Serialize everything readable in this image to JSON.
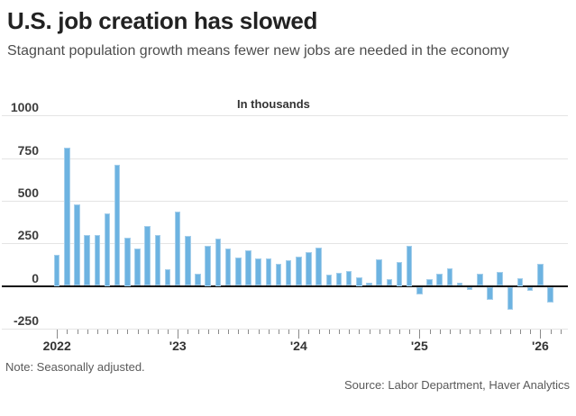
{
  "header": {
    "title": "U.S. job creation has slowed",
    "subtitle": "Stagnant population growth means fewer new jobs are needed in the economy"
  },
  "chart_data": {
    "type": "bar",
    "title": "U.S. job creation has slowed",
    "unit_label": "In thousands",
    "ylabel": "",
    "xlabel": "",
    "bar_color": "#6db3e1",
    "bar_border_color": "#a5cfeb",
    "grid_color": "#e4e4e4",
    "zero_line_color": "#111111",
    "yticks": [
      1000,
      750,
      500,
      250,
      0,
      -250
    ],
    "ylim": [
      -350,
      1050
    ],
    "x": [
      "Jan 2022",
      "Feb 2022",
      "Mar 2022",
      "Apr 2022",
      "May 2022",
      "Jun 2022",
      "Jul 2022",
      "Aug 2022",
      "Sep 2022",
      "Oct 2022",
      "Nov 2022",
      "Dec 2022",
      "Jan 2023",
      "Feb 2023",
      "Mar 2023",
      "Apr 2023",
      "May 2023",
      "Jun 2023",
      "Jul 2023",
      "Aug 2023",
      "Sep 2023",
      "Oct 2023",
      "Nov 2023",
      "Dec 2023",
      "Jan 2024",
      "Feb 2024",
      "Mar 2024",
      "Apr 2024",
      "May 2024",
      "Jun 2024",
      "Jul 2024",
      "Aug 2024",
      "Sep 2024",
      "Oct 2024",
      "Nov 2024",
      "Dec 2024",
      "Jan 2025",
      "Feb 2025",
      "Mar 2025",
      "Apr 2025",
      "May 2025",
      "Jun 2025",
      "Jul 2025",
      "Aug 2025",
      "Sep 2025",
      "Oct 2025",
      "Nov 2025",
      "Dec 2025",
      "Jan 2026",
      "Feb 2026"
    ],
    "values": [
      185,
      810,
      480,
      300,
      300,
      425,
      710,
      285,
      220,
      350,
      300,
      100,
      435,
      295,
      70,
      235,
      280,
      220,
      165,
      210,
      160,
      160,
      130,
      150,
      170,
      200,
      225,
      65,
      75,
      85,
      50,
      20,
      155,
      40,
      140,
      235,
      -45,
      40,
      70,
      105,
      20,
      -20,
      70,
      -75,
      80,
      -135,
      45,
      -25,
      130,
      -90
    ],
    "xticks_years": [
      {
        "label": "2022",
        "month_index": 0
      },
      {
        "label": "'23",
        "month_index": 12
      },
      {
        "label": "'24",
        "month_index": 24
      },
      {
        "label": "'25",
        "month_index": 36
      },
      {
        "label": "'26",
        "month_index": 48
      }
    ],
    "legend": null,
    "grid": true
  },
  "footer": {
    "note": "Note: Seasonally adjusted.",
    "source": "Source: Labor Department, Haver Analytics"
  }
}
